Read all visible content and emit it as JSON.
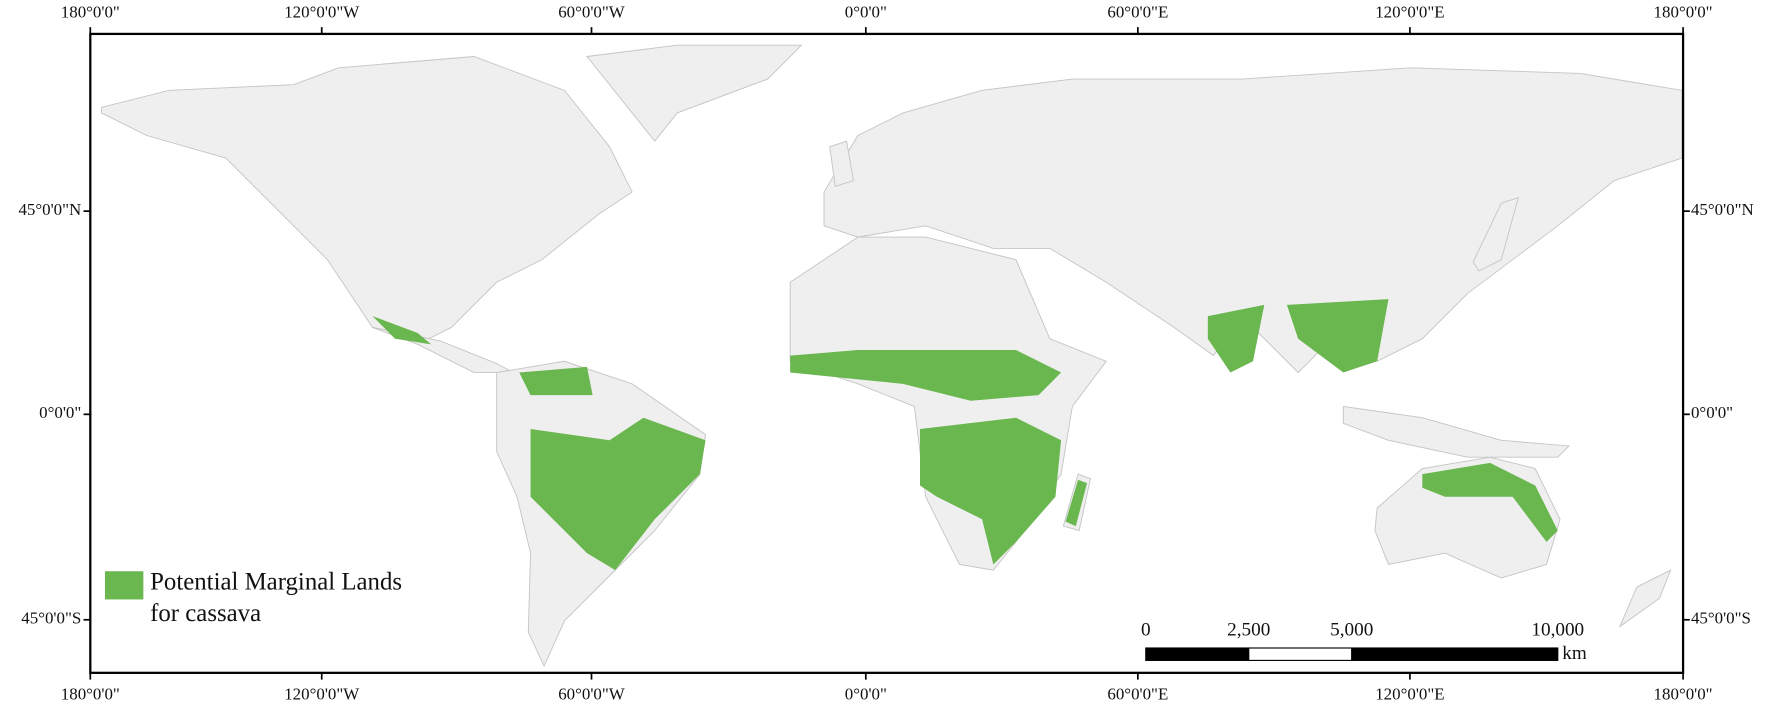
{
  "longitude_labels": [
    "180°0'0\"",
    "120°0'0\"W",
    "60°0'0\"W",
    "0°0'0\"",
    "60°0'0\"E",
    "120°0'0\"E",
    "180°0'0\""
  ],
  "latitude_labels": [
    "45°0'0\"N",
    "0°0'0\"",
    "45°0'0\"S"
  ],
  "legend": {
    "label_line1": "Potential Marginal Lands",
    "label_line2": "for cassava",
    "color": "#6ab64f"
  },
  "scale_bar": {
    "ticks": [
      0,
      {
        "value": 2500,
        "label": "2,500"
      },
      {
        "value": 5000,
        "label": "5,000"
      },
      {
        "value": 10000,
        "label": "10,000"
      }
    ],
    "unit": "km"
  }
}
